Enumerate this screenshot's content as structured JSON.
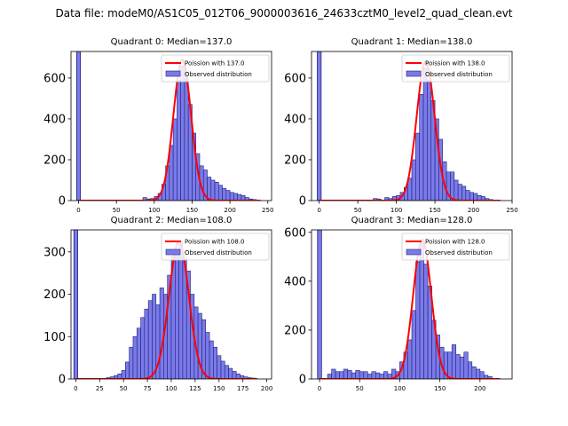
{
  "figure": {
    "suptitle": "Data file: modeM0/AS1C05_012T06_9000003616_24633cztM0_level2_quad_clean.evt"
  },
  "colors": {
    "bar_fill": "#7b7be8",
    "bar_edge": "#1f1f80",
    "poisson_line": "#ff0000",
    "axis": "#000000"
  },
  "chart_data": [
    {
      "type": "bar",
      "title": "Quadrant 0: Median=137.0",
      "legend": {
        "placement": "top-right",
        "entries": [
          "Poission with 137.0",
          "Observed distribution"
        ]
      },
      "xlim": [
        -10,
        255
      ],
      "ylim": [
        0,
        730
      ],
      "xticks": [
        0,
        50,
        100,
        150,
        200,
        250
      ],
      "yticks": [
        0,
        200,
        400,
        600
      ],
      "bin_width": 5,
      "zero_bar": 730,
      "bin_starts": [
        85,
        90,
        95,
        100,
        105,
        110,
        115,
        120,
        125,
        130,
        135,
        140,
        145,
        150,
        155,
        160,
        165,
        170,
        175,
        180,
        185,
        190,
        195,
        200,
        205,
        210,
        215,
        220,
        225,
        230,
        235
      ],
      "values": [
        15,
        8,
        10,
        20,
        35,
        80,
        170,
        270,
        400,
        590,
        660,
        600,
        470,
        330,
        230,
        170,
        150,
        115,
        100,
        90,
        75,
        60,
        50,
        40,
        35,
        30,
        25,
        15,
        8,
        5,
        3
      ],
      "poisson_mean": 137.0,
      "poisson_peak": 690,
      "poisson_sigma": 11.7
    },
    {
      "type": "bar",
      "title": "Quadrant 1: Median=138.0",
      "legend": {
        "placement": "top-right",
        "entries": [
          "Poission with 138.0",
          "Observed distribution"
        ]
      },
      "xlim": [
        -10,
        250
      ],
      "ylim": [
        0,
        730
      ],
      "xticks": [
        0,
        50,
        100,
        150,
        200,
        250
      ],
      "yticks": [
        0,
        200,
        400,
        600
      ],
      "bin_width": 5,
      "zero_bar": 730,
      "bin_starts": [
        70,
        75,
        85,
        90,
        95,
        100,
        105,
        110,
        115,
        120,
        125,
        130,
        135,
        140,
        145,
        150,
        155,
        160,
        165,
        170,
        175,
        180,
        185,
        190,
        195,
        200,
        205,
        210,
        215,
        220,
        225
      ],
      "values": [
        10,
        8,
        15,
        10,
        20,
        25,
        40,
        65,
        110,
        200,
        330,
        520,
        650,
        590,
        490,
        400,
        300,
        190,
        140,
        140,
        100,
        80,
        70,
        50,
        40,
        35,
        25,
        20,
        10,
        5,
        3
      ],
      "poisson_mean": 138.0,
      "poisson_peak": 680,
      "poisson_sigma": 11.7
    },
    {
      "type": "bar",
      "title": "Quadrant 2: Median=108.0",
      "legend": {
        "placement": "top-right",
        "entries": [
          "Poission with 108.0",
          "Observed distribution"
        ]
      },
      "xlim": [
        -5,
        205
      ],
      "ylim": [
        0,
        352
      ],
      "xticks": [
        0,
        25,
        50,
        75,
        100,
        125,
        150,
        175,
        200
      ],
      "yticks": [
        0,
        100,
        200,
        300
      ],
      "bin_width": 4,
      "zero_bar": 352,
      "bin_starts": [
        32,
        36,
        40,
        44,
        48,
        52,
        56,
        60,
        64,
        68,
        72,
        76,
        80,
        84,
        88,
        92,
        96,
        100,
        104,
        108,
        112,
        116,
        120,
        124,
        128,
        132,
        136,
        140,
        144,
        148,
        152,
        156,
        160,
        164,
        168,
        172,
        176,
        180,
        184
      ],
      "values": [
        3,
        5,
        8,
        12,
        20,
        40,
        75,
        100,
        120,
        145,
        165,
        185,
        200,
        175,
        215,
        200,
        245,
        290,
        305,
        325,
        285,
        255,
        200,
        170,
        155,
        140,
        110,
        90,
        75,
        55,
        42,
        32,
        25,
        18,
        12,
        8,
        5,
        3,
        2
      ],
      "poisson_mean": 108.0,
      "poisson_peak": 325,
      "poisson_sigma": 10.4
    },
    {
      "type": "bar",
      "title": "Quadrant 3: Median=128.0",
      "legend": {
        "placement": "top-right",
        "entries": [
          "Poission with 128.0",
          "Observed distribution"
        ]
      },
      "xlim": [
        -10,
        240
      ],
      "ylim": [
        0,
        610
      ],
      "xticks": [
        0,
        50,
        100,
        150,
        200
      ],
      "yticks": [
        0,
        200,
        400,
        600
      ],
      "bin_width": 5,
      "zero_bar": 610,
      "bin_starts": [
        10,
        15,
        20,
        25,
        30,
        35,
        40,
        45,
        50,
        55,
        60,
        65,
        70,
        75,
        80,
        85,
        90,
        95,
        100,
        105,
        110,
        115,
        120,
        125,
        130,
        135,
        140,
        145,
        150,
        155,
        160,
        165,
        170,
        175,
        180,
        185,
        190,
        195,
        200,
        205,
        210
      ],
      "values": [
        20,
        40,
        30,
        30,
        40,
        35,
        25,
        35,
        30,
        30,
        20,
        30,
        25,
        20,
        30,
        20,
        40,
        30,
        70,
        110,
        160,
        280,
        480,
        570,
        470,
        380,
        240,
        180,
        130,
        110,
        110,
        140,
        100,
        90,
        110,
        70,
        50,
        40,
        30,
        15,
        10
      ],
      "poisson_mean": 128.0,
      "poisson_peak": 570,
      "poisson_sigma": 11.3
    }
  ]
}
